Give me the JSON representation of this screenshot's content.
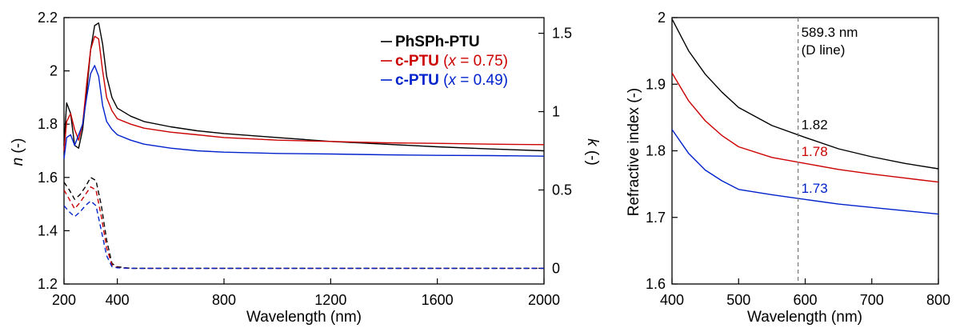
{
  "chart_data": [
    {
      "type": "line",
      "xlabel": "Wavelength (nm)",
      "ylabel": "n (-)",
      "y2label": "k (-)",
      "xlim": [
        200,
        2000
      ],
      "ylim": [
        1.2,
        2.2
      ],
      "y2lim": [
        -0.1,
        1.6
      ],
      "xticks": [
        "200",
        "400",
        "800",
        "1200",
        "1600",
        "2000"
      ],
      "yticks": [
        "1.2",
        "1.4",
        "1.6",
        "1.8",
        "2",
        "2.2"
      ],
      "y2ticks": [
        "0",
        "0.5",
        "1",
        "1.5"
      ],
      "legend_position": "top-right",
      "legend": [
        {
          "bold": "PhSPh-PTU",
          "italic": "",
          "rest": "",
          "color": "#000000"
        },
        {
          "bold": "c-PTU",
          "italic": "x",
          "rest": " = 0.75)",
          "color": "#cc0000"
        },
        {
          "bold": "c-PTU",
          "italic": "x",
          "rest": " = 0.49)",
          "color": "#0022cc"
        }
      ],
      "series_n": [
        {
          "color": "#000000",
          "x": [
            200,
            210,
            225,
            240,
            255,
            270,
            285,
            300,
            315,
            330,
            345,
            360,
            380,
            400,
            450,
            500,
            600,
            700,
            800,
            1000,
            1200,
            1400,
            1600,
            1800,
            2000
          ],
          "y": [
            1.72,
            1.88,
            1.84,
            1.72,
            1.71,
            1.78,
            1.92,
            2.08,
            2.17,
            2.18,
            2.1,
            1.98,
            1.9,
            1.86,
            1.83,
            1.81,
            1.79,
            1.775,
            1.765,
            1.75,
            1.735,
            1.725,
            1.715,
            1.707,
            1.7
          ]
        },
        {
          "color": "#cc0000",
          "x": [
            200,
            210,
            225,
            240,
            255,
            270,
            285,
            300,
            315,
            330,
            345,
            360,
            380,
            400,
            450,
            500,
            600,
            700,
            800,
            1000,
            1200,
            1400,
            1600,
            1800,
            2000
          ],
          "y": [
            1.7,
            1.81,
            1.84,
            1.78,
            1.74,
            1.8,
            1.95,
            2.08,
            2.13,
            2.12,
            2.0,
            1.9,
            1.85,
            1.82,
            1.8,
            1.785,
            1.77,
            1.76,
            1.75,
            1.74,
            1.735,
            1.73,
            1.728,
            1.725,
            1.723
          ]
        },
        {
          "color": "#0022cc",
          "x": [
            200,
            210,
            225,
            240,
            255,
            270,
            285,
            300,
            315,
            330,
            345,
            360,
            380,
            400,
            450,
            500,
            600,
            700,
            800,
            1000,
            1200,
            1400,
            1600,
            1800,
            2000
          ],
          "y": [
            1.67,
            1.75,
            1.76,
            1.72,
            1.76,
            1.8,
            1.9,
            1.99,
            2.02,
            1.98,
            1.87,
            1.81,
            1.78,
            1.76,
            1.74,
            1.725,
            1.71,
            1.7,
            1.695,
            1.69,
            1.688,
            1.685,
            1.683,
            1.682,
            1.68
          ]
        }
      ],
      "series_k": [
        {
          "color": "#000000",
          "x": [
            200,
            220,
            240,
            260,
            280,
            300,
            320,
            340,
            360,
            380,
            400,
            450,
            600,
            800,
            1200,
            1600,
            2000
          ],
          "y": [
            0.55,
            0.5,
            0.44,
            0.47,
            0.52,
            0.58,
            0.56,
            0.4,
            0.18,
            0.03,
            0.01,
            0.0,
            0.0,
            0.0,
            0.0,
            0.0,
            0.0
          ]
        },
        {
          "color": "#cc0000",
          "x": [
            200,
            220,
            240,
            260,
            280,
            300,
            320,
            340,
            360,
            380,
            400,
            450,
            600,
            800,
            1200,
            1600,
            2000
          ],
          "y": [
            0.5,
            0.44,
            0.38,
            0.42,
            0.47,
            0.52,
            0.5,
            0.33,
            0.13,
            0.02,
            0.005,
            0.0,
            0.0,
            0.0,
            0.0,
            0.0,
            0.0
          ]
        },
        {
          "color": "#0022cc",
          "x": [
            200,
            220,
            240,
            260,
            280,
            300,
            320,
            340,
            360,
            380,
            400,
            450,
            600,
            800,
            1200,
            1600,
            2000
          ],
          "y": [
            0.4,
            0.36,
            0.33,
            0.36,
            0.4,
            0.43,
            0.4,
            0.24,
            0.08,
            0.01,
            0.003,
            0.0,
            0.0,
            0.0,
            0.0,
            0.0,
            0.0
          ]
        }
      ]
    },
    {
      "type": "line",
      "xlabel": "Wavelength (nm)",
      "ylabel": "Refractive index (-)",
      "xlim": [
        400,
        800
      ],
      "ylim": [
        1.6,
        2.0
      ],
      "xticks": [
        "400",
        "500",
        "600",
        "700",
        "800"
      ],
      "yticks": [
        "1.6",
        "1.7",
        "1.8",
        "1.9",
        "2"
      ],
      "vline": {
        "x": 589.3,
        "label1": "589.3 nm",
        "label2": "(D line)"
      },
      "values": [
        {
          "text": "1.82",
          "color": "#000000",
          "y": 1.825
        },
        {
          "text": "1.78",
          "color": "#cc0000",
          "y": 1.785
        },
        {
          "text": "1.73",
          "color": "#0022cc",
          "y": 1.73
        }
      ],
      "series": [
        {
          "color": "#000000",
          "x": [
            400,
            425,
            450,
            475,
            500,
            550,
            600,
            650,
            700,
            750,
            800
          ],
          "y": [
            1.998,
            1.95,
            1.915,
            1.888,
            1.865,
            1.838,
            1.82,
            1.803,
            1.791,
            1.781,
            1.773
          ]
        },
        {
          "color": "#cc0000",
          "x": [
            400,
            425,
            450,
            475,
            500,
            550,
            600,
            650,
            700,
            750,
            800
          ],
          "y": [
            1.917,
            1.875,
            1.845,
            1.823,
            1.806,
            1.79,
            1.781,
            1.772,
            1.765,
            1.759,
            1.753
          ]
        },
        {
          "color": "#0022cc",
          "x": [
            400,
            425,
            450,
            475,
            500,
            550,
            600,
            650,
            700,
            750,
            800
          ],
          "y": [
            1.832,
            1.796,
            1.771,
            1.755,
            1.742,
            1.734,
            1.727,
            1.72,
            1.715,
            1.71,
            1.705
          ]
        }
      ]
    }
  ]
}
